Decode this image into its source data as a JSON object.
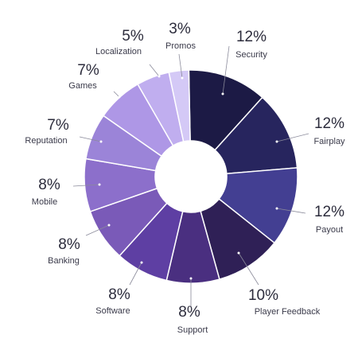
{
  "chart_data": {
    "type": "pie",
    "style": "donut",
    "legend": "none",
    "slices": [
      {
        "label": "Security",
        "value": 12,
        "value_label": "12%",
        "color": "#1c1a45"
      },
      {
        "label": "Fairplay",
        "value": 12,
        "value_label": "12%",
        "color": "#27255e"
      },
      {
        "label": "Payout",
        "value": 12,
        "value_label": "12%",
        "color": "#433f92"
      },
      {
        "label": "Player Feedback",
        "value": 10,
        "value_label": "10%",
        "color": "#2f2056"
      },
      {
        "label": "Support",
        "value": 8,
        "value_label": "8%",
        "color": "#4a2f80"
      },
      {
        "label": "Software",
        "value": 8,
        "value_label": "8%",
        "color": "#5e3fa3"
      },
      {
        "label": "Banking",
        "value": 8,
        "value_label": "8%",
        "color": "#7a5ab8"
      },
      {
        "label": "Mobile",
        "value": 8,
        "value_label": "8%",
        "color": "#8c6fcb"
      },
      {
        "label": "Reputation",
        "value": 7,
        "value_label": "7%",
        "color": "#9b84d8"
      },
      {
        "label": "Games",
        "value": 7,
        "value_label": "7%",
        "color": "#ae97e6"
      },
      {
        "label": "Localization",
        "value": 5,
        "value_label": "5%",
        "color": "#c0aeef"
      },
      {
        "label": "Promos",
        "value": 3,
        "value_label": "3%",
        "color": "#d4c9f6"
      }
    ]
  }
}
